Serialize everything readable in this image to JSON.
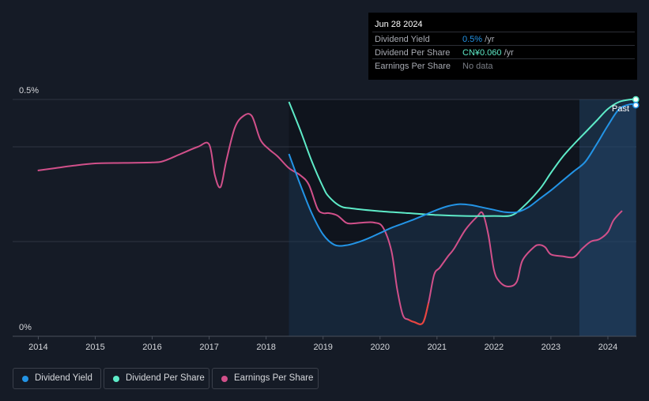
{
  "tooltip": {
    "date": "Jun 28 2024",
    "rows": [
      {
        "label": "Dividend Yield",
        "value": "0.5%",
        "unit": " /yr"
      },
      {
        "label": "Dividend Per Share",
        "value": "CN¥0.060",
        "unit": " /yr"
      },
      {
        "label": "Earnings Per Share",
        "value": "No data",
        "unit": ""
      }
    ]
  },
  "legend": {
    "items": [
      "Dividend Yield",
      "Dividend Per Share",
      "Earnings Per Share"
    ]
  },
  "past_label": "Past",
  "colors": {
    "dividend_yield": "#2394e6",
    "dividend_per_share": "#5eebc8",
    "earnings_per_share": "#d1508a",
    "eps_negative": "#e8453c",
    "background": "#151b26",
    "plot_area": "#0f141d",
    "fill": "#1d3550"
  },
  "chart_data": {
    "type": "line",
    "title": "",
    "xlabel": "",
    "ylabel": "",
    "y_tick_labels": [
      "0.5%",
      "0%"
    ],
    "x_tick_labels": [
      "2014",
      "2015",
      "2016",
      "2017",
      "2018",
      "2019",
      "2020",
      "2021",
      "2022",
      "2023",
      "2024"
    ],
    "xlim": [
      2013.55,
      2024.5
    ],
    "ylim": [
      0,
      0.5
    ],
    "dividend_era_start": 2018.4,
    "past_region_start": 2023.5,
    "series": [
      {
        "name": "Dividend Yield",
        "unit": "%",
        "x": [
          2018.4,
          2018.6,
          2018.8,
          2019.0,
          2019.2,
          2019.4,
          2019.6,
          2019.8,
          2020.0,
          2020.2,
          2020.4,
          2020.6,
          2020.8,
          2021.0,
          2021.2,
          2021.4,
          2021.6,
          2021.8,
          2022.0,
          2022.2,
          2022.4,
          2022.6,
          2022.8,
          2023.0,
          2023.2,
          2023.4,
          2023.6,
          2023.8,
          2024.0,
          2024.2,
          2024.4,
          2024.49
        ],
        "values": [
          0.385,
          0.32,
          0.26,
          0.215,
          0.193,
          0.192,
          0.198,
          0.207,
          0.218,
          0.229,
          0.238,
          0.247,
          0.257,
          0.267,
          0.275,
          0.279,
          0.277,
          0.272,
          0.267,
          0.262,
          0.262,
          0.272,
          0.29,
          0.308,
          0.328,
          0.348,
          0.368,
          0.405,
          0.445,
          0.48,
          0.49,
          0.488
        ]
      },
      {
        "name": "Dividend Per Share",
        "unit": "CN¥",
        "x": [
          2018.4,
          2018.6,
          2018.8,
          2019.0,
          2019.1,
          2019.3,
          2019.5,
          2020.0,
          2020.5,
          2021.0,
          2021.5,
          2022.0,
          2022.3,
          2022.5,
          2022.8,
          2023.0,
          2023.2,
          2023.4,
          2023.6,
          2023.8,
          2024.0,
          2024.2,
          2024.4,
          2024.49
        ],
        "values": [
          0.495,
          0.435,
          0.37,
          0.315,
          0.295,
          0.275,
          0.27,
          0.264,
          0.26,
          0.256,
          0.254,
          0.254,
          0.255,
          0.272,
          0.31,
          0.345,
          0.378,
          0.405,
          0.43,
          0.455,
          0.48,
          0.495,
          0.5,
          0.5
        ]
      },
      {
        "name": "Earnings Per Share",
        "unit": "CN¥",
        "x": [
          2013.99,
          2014.3,
          2014.6,
          2015.0,
          2015.5,
          2016.0,
          2016.2,
          2016.5,
          2016.8,
          2017.0,
          2017.1,
          2017.2,
          2017.3,
          2017.45,
          2017.6,
          2017.75,
          2017.9,
          2018.05,
          2018.2,
          2018.4,
          2018.6,
          2018.75,
          2018.9,
          2019.0,
          2019.1,
          2019.25,
          2019.4,
          2019.5,
          2019.7,
          2019.9,
          2020.05,
          2020.2,
          2020.3,
          2020.4,
          2020.5,
          2020.6,
          2020.75,
          2020.85,
          2020.95,
          2021.05,
          2021.2,
          2021.3,
          2021.5,
          2021.7,
          2021.8,
          2021.9,
          2022.0,
          2022.1,
          2022.25,
          2022.4,
          2022.5,
          2022.7,
          2022.8,
          2022.9,
          2023.0,
          2023.2,
          2023.4,
          2023.55,
          2023.7,
          2023.85,
          2024.0,
          2024.1,
          2024.25
        ],
        "values": [
          0.35,
          0.355,
          0.36,
          0.365,
          0.366,
          0.367,
          0.37,
          0.385,
          0.4,
          0.405,
          0.34,
          0.315,
          0.37,
          0.44,
          0.465,
          0.465,
          0.415,
          0.395,
          0.38,
          0.355,
          0.34,
          0.32,
          0.27,
          0.26,
          0.26,
          0.255,
          0.24,
          0.238,
          0.24,
          0.24,
          0.23,
          0.18,
          0.1,
          0.045,
          0.035,
          0.03,
          0.028,
          0.07,
          0.13,
          0.145,
          0.17,
          0.185,
          0.225,
          0.252,
          0.26,
          0.215,
          0.14,
          0.115,
          0.105,
          0.115,
          0.16,
          0.188,
          0.193,
          0.188,
          0.173,
          0.169,
          0.167,
          0.185,
          0.2,
          0.205,
          0.22,
          0.245,
          0.265
        ]
      }
    ]
  }
}
